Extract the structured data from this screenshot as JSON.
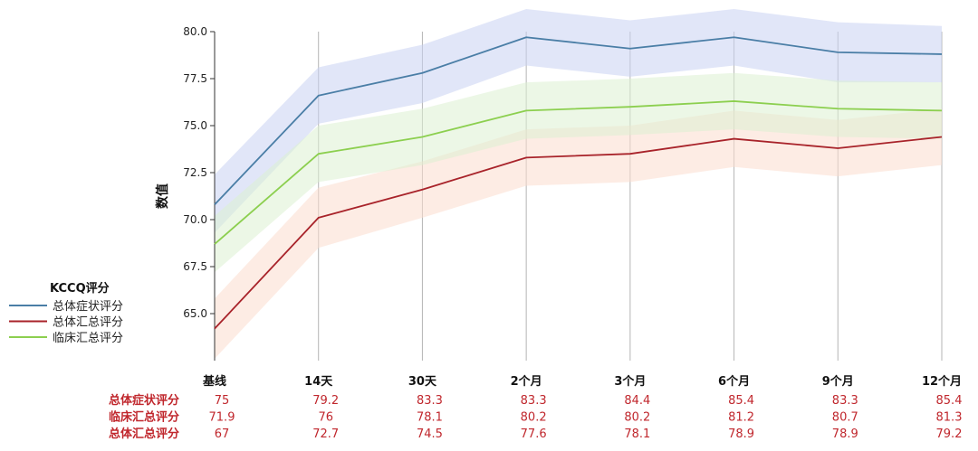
{
  "chart_data": {
    "type": "line",
    "ylabel": "数值",
    "ylim": [
      62.5,
      80.0
    ],
    "yticks": [
      65.0,
      67.5,
      70.0,
      72.5,
      75.0,
      77.5,
      80.0
    ],
    "ytick_labels": [
      "65.0",
      "67.5",
      "70.0",
      "72.5",
      "75.0",
      "77.5",
      "80.0"
    ],
    "categories": [
      "基线",
      "14天",
      "30天",
      "2个月",
      "3个月",
      "6个月",
      "9个月",
      "12个月"
    ],
    "grid": "vertical",
    "legend": {
      "title": "KCCQ评分",
      "placement": "left"
    },
    "series": [
      {
        "name": "总体症状评分",
        "color": "#4a7ea6",
        "band_color": "#c9d2f3",
        "values": [
          70.8,
          76.6,
          77.8,
          79.7,
          79.1,
          79.7,
          78.9,
          78.8
        ],
        "lower": [
          69.3,
          75.1,
          76.2,
          78.2,
          77.6,
          78.2,
          77.3,
          77.3
        ],
        "upper": [
          72.4,
          78.1,
          79.3,
          81.2,
          80.6,
          81.2,
          80.5,
          80.3
        ]
      },
      {
        "name": "总体汇总评分",
        "color": "#a8232a",
        "band_color": "#fbdccd",
        "values": [
          64.2,
          70.1,
          71.6,
          73.3,
          73.5,
          74.3,
          73.8,
          74.4
        ],
        "lower": [
          62.6,
          68.5,
          70.1,
          71.8,
          72.0,
          72.8,
          72.3,
          72.9
        ],
        "upper": [
          65.8,
          71.7,
          73.1,
          74.8,
          75.0,
          75.8,
          75.3,
          75.9
        ]
      },
      {
        "name": "临床汇总评分",
        "color": "#8ccf4f",
        "band_color": "#dcf0d2",
        "values": [
          68.7,
          73.5,
          74.4,
          75.8,
          76.0,
          76.3,
          75.9,
          75.8
        ],
        "lower": [
          67.2,
          72.0,
          72.9,
          74.3,
          74.5,
          74.8,
          74.4,
          74.3
        ],
        "upper": [
          70.2,
          75.0,
          75.9,
          77.3,
          77.5,
          77.8,
          77.4,
          77.3
        ]
      }
    ],
    "table": {
      "rows": [
        {
          "label": "总体症状评分",
          "values": [
            "75",
            "79.2",
            "83.3",
            "83.3",
            "84.4",
            "85.4",
            "83.3",
            "85.4"
          ]
        },
        {
          "label": "临床汇总评分",
          "values": [
            "71.9",
            "76",
            "78.1",
            "80.2",
            "80.2",
            "81.2",
            "80.7",
            "81.3"
          ]
        },
        {
          "label": "总体汇总评分",
          "values": [
            "67",
            "72.7",
            "74.5",
            "77.6",
            "78.1",
            "78.9",
            "78.9",
            "79.2"
          ]
        }
      ],
      "color": "#c0272d"
    }
  }
}
